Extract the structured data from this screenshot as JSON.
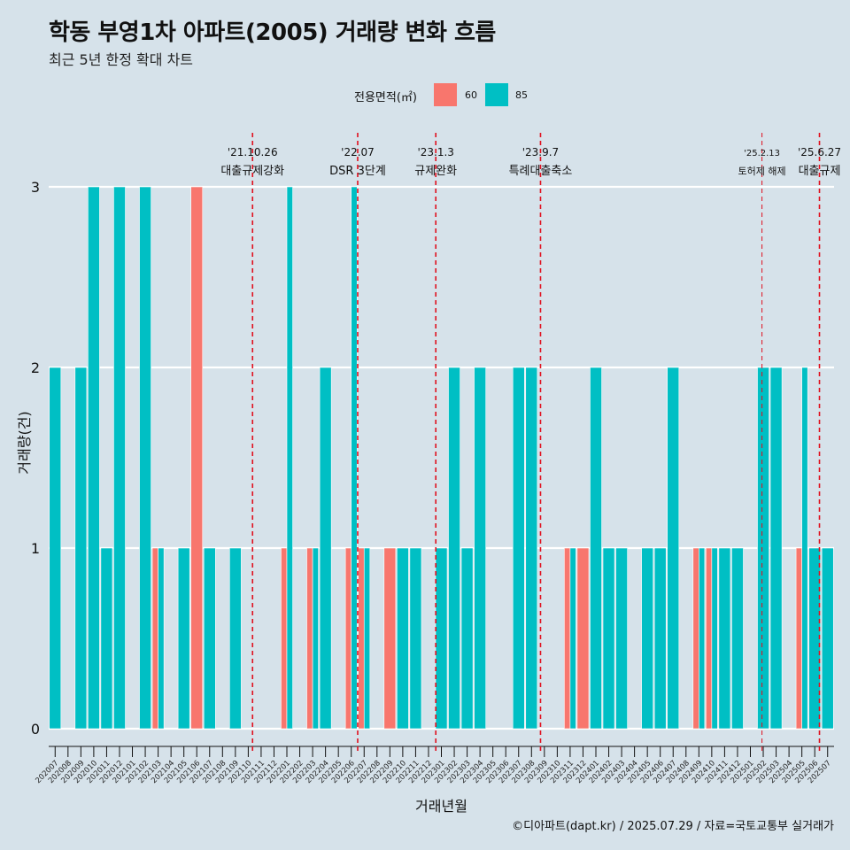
{
  "title": "학동 부영1차 아파트(2005) 거래량 변화 흐름",
  "subtitle": "최근 5년 한정 확대 차트",
  "legend": {
    "title": "전용면적(㎡)",
    "items": [
      {
        "label": "60",
        "color": "#F8766D"
      },
      {
        "label": "85",
        "color": "#00BFC4"
      }
    ]
  },
  "caption": "©디아파트(dapt.kr) / 2025.07.29 / 자료=국토교통부 실거래가",
  "chart_data": {
    "type": "bar",
    "xlabel": "거래년월",
    "ylabel": "거래량(건)",
    "ylim": [
      0,
      3
    ],
    "yticks": [
      0,
      1,
      2,
      3
    ],
    "grid": true,
    "legend_position": "top",
    "categories": [
      "202007",
      "202008",
      "202009",
      "202010",
      "202011",
      "202012",
      "202101",
      "202102",
      "202103",
      "202104",
      "202105",
      "202106",
      "202107",
      "202108",
      "202109",
      "202110",
      "202111",
      "202112",
      "202201",
      "202202",
      "202203",
      "202204",
      "202205",
      "202206",
      "202207",
      "202208",
      "202209",
      "202210",
      "202211",
      "202212",
      "202301",
      "202302",
      "202303",
      "202304",
      "202305",
      "202306",
      "202307",
      "202308",
      "202309",
      "202310",
      "202311",
      "202312",
      "202401",
      "202402",
      "202403",
      "202404",
      "202405",
      "202406",
      "202407",
      "202408",
      "202409",
      "202410",
      "202411",
      "202412",
      "202501",
      "202502",
      "202503",
      "202504",
      "202505",
      "202506",
      "202507"
    ],
    "series": [
      {
        "name": "60",
        "color": "#F8766D",
        "values": [
          0,
          0,
          0,
          0,
          0,
          0,
          0,
          0,
          1,
          0,
          0,
          3,
          0,
          0,
          0,
          0,
          0,
          0,
          1,
          0,
          1,
          0,
          0,
          1,
          1,
          0,
          1,
          0,
          0,
          0,
          0,
          0,
          0,
          0,
          0,
          0,
          0,
          0,
          0,
          0,
          1,
          1,
          0,
          0,
          0,
          0,
          0,
          0,
          0,
          0,
          1,
          1,
          0,
          0,
          0,
          0,
          0,
          0,
          1,
          0,
          0
        ]
      },
      {
        "name": "85",
        "color": "#00BFC4",
        "values": [
          2,
          0,
          2,
          3,
          1,
          3,
          0,
          3,
          1,
          0,
          1,
          0,
          1,
          0,
          1,
          0,
          0,
          0,
          3,
          0,
          1,
          2,
          0,
          3,
          1,
          0,
          0,
          1,
          1,
          0,
          1,
          2,
          1,
          2,
          0,
          0,
          2,
          2,
          0,
          0,
          1,
          0,
          2,
          1,
          1,
          0,
          1,
          1,
          2,
          0,
          1,
          1,
          1,
          1,
          0,
          2,
          2,
          0,
          2,
          1,
          1
        ]
      }
    ],
    "events": [
      {
        "date": "'21.10.26",
        "label": "대출규제강화",
        "month": "202110",
        "day": 26
      },
      {
        "date": "'22.07",
        "label": "DSR 3단계",
        "month": "202207",
        "day": 1
      },
      {
        "date": "'23.1.3",
        "label": "규제완화",
        "month": "202301",
        "day": 3
      },
      {
        "date": "'23.9.7",
        "label": "특례대출축소",
        "month": "202309",
        "day": 7
      },
      {
        "date": "'25.2.13",
        "label": "토허제 해제",
        "month": "202502",
        "day": 13
      },
      {
        "date": "'25.6.27",
        "label": "대출규제",
        "month": "202506",
        "day": 27
      }
    ]
  }
}
